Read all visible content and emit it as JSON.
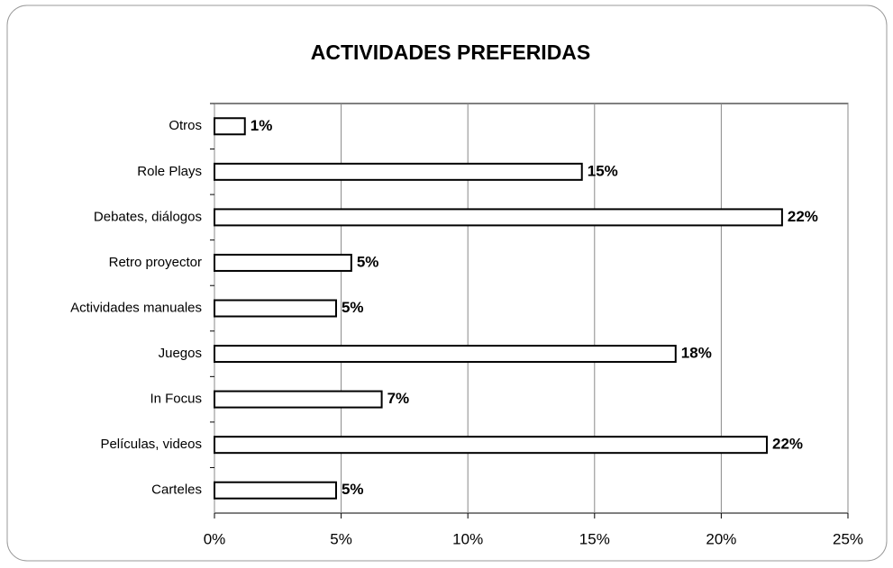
{
  "chart_data": {
    "type": "barh",
    "title": "ACTIVIDADES PREFERIDAS",
    "categories": [
      "Otros",
      "Role Plays",
      "Debates, diálogos",
      "Retro proyector",
      "Actividades manuales",
      "Juegos",
      "In Focus",
      "Películas, videos",
      "Carteles"
    ],
    "values": [
      1.2,
      14.5,
      22.4,
      5.4,
      4.8,
      18.2,
      6.6,
      21.8,
      4.8
    ],
    "value_labels": [
      "1%",
      "15%",
      "22%",
      "5%",
      "5%",
      "18%",
      "7%",
      "22%",
      "5%"
    ],
    "color": "#ffffff",
    "xlim": [
      0,
      25
    ],
    "xticks": [
      {
        "value": 0,
        "label": "0%"
      },
      {
        "value": 5,
        "label": "5%"
      },
      {
        "value": 10,
        "label": "10%"
      },
      {
        "value": 15,
        "label": "15%"
      },
      {
        "value": 20,
        "label": "20%"
      },
      {
        "value": 25,
        "label": "25%"
      }
    ],
    "grid": true
  }
}
